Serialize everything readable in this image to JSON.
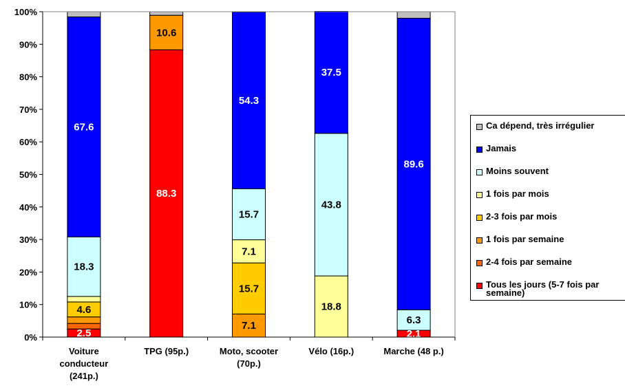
{
  "chart_data": {
    "type": "bar",
    "stacked": true,
    "categories": [
      "Voiture conducteur (241p.)",
      "TPG (95p.)",
      "Moto, scooter (70p.)",
      "Vélo (16p.)",
      "Marche (48 p.)"
    ],
    "category_lines": [
      [
        "Voiture",
        "conducteur",
        "(241p.)"
      ],
      [
        "TPG (95p.)"
      ],
      [
        "Moto, scooter",
        "(70p.)"
      ],
      [
        "Vélo (16p.)"
      ],
      [
        "Marche (48 p.)"
      ]
    ],
    "ylim": [
      0,
      100
    ],
    "yticks": [
      "0%",
      "10%",
      "20%",
      "30%",
      "40%",
      "50%",
      "60%",
      "70%",
      "80%",
      "90%",
      "100%"
    ],
    "grid": false,
    "legend_position": "right",
    "series": [
      {
        "name": "Tous les jours (5-7 fois par semaine)",
        "legend_lines": [
          "Tous les jours (5-7 fois par",
          "semaine)"
        ],
        "color": "#FF0000",
        "label_color": "#ffffff",
        "values": [
          2.5,
          88.3,
          0,
          0,
          2.1
        ],
        "labels": [
          "2.5",
          "88.3",
          "",
          "",
          "2.1"
        ]
      },
      {
        "name": "2-4 fois par semaine",
        "color": "#FF6600",
        "label_color": "#000000",
        "values": [
          1.7,
          0,
          0,
          0,
          0
        ],
        "labels": [
          "",
          "",
          "",
          "",
          ""
        ]
      },
      {
        "name": "1 fois par semaine",
        "color": "#FF9900",
        "label_color": "#000000",
        "values": [
          2.0,
          10.6,
          7.1,
          0,
          0
        ],
        "labels": [
          "",
          "10.6",
          "7.1",
          "",
          ""
        ]
      },
      {
        "name": "2-3 fois par mois",
        "color": "#FFCC00",
        "label_color": "#000000",
        "values": [
          4.6,
          0,
          15.7,
          0,
          0
        ],
        "labels": [
          "4.6",
          "",
          "15.7",
          "",
          ""
        ]
      },
      {
        "name": "1 fois par mois",
        "color": "#FFFF99",
        "label_color": "#000000",
        "values": [
          1.7,
          0,
          7.1,
          18.8,
          0
        ],
        "labels": [
          "",
          "",
          "7.1",
          "18.8",
          ""
        ]
      },
      {
        "name": "Moins souvent",
        "color": "#CCFFFF",
        "label_color": "#000000",
        "values": [
          18.3,
          0,
          15.7,
          43.8,
          6.3
        ],
        "labels": [
          "18.3",
          "",
          "15.7",
          "43.8",
          "6.3"
        ]
      },
      {
        "name": "Jamais",
        "color": "#0000FF",
        "label_color": "#ffffff",
        "values": [
          67.6,
          0,
          54.3,
          37.5,
          89.6
        ],
        "labels": [
          "67.6",
          "",
          "54.3",
          "37.5",
          "89.6"
        ]
      },
      {
        "name": "Ca dépend, très irrégulier",
        "color": "#C0C0C0",
        "label_color": "#000000",
        "values": [
          1.6,
          1.1,
          0.1,
          0,
          2.0
        ],
        "labels": [
          "",
          "",
          "",
          "",
          ""
        ]
      }
    ]
  }
}
